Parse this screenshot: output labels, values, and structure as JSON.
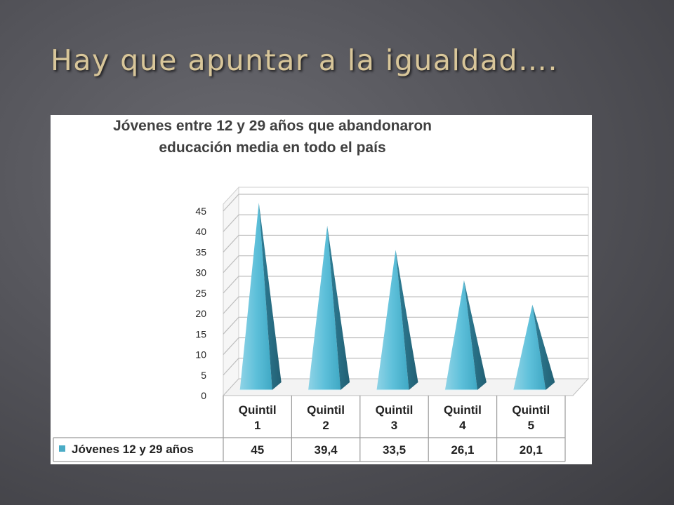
{
  "slide": {
    "title": "Hay que apuntar a la igualdad…."
  },
  "chart_data": {
    "type": "bar",
    "subtype": "3d-pyramid",
    "title_lines": [
      "Jóvenes entre 12 y 29 años que abandonaron",
      "educación media en todo el país"
    ],
    "categories": [
      [
        "Quintil",
        "1"
      ],
      [
        "Quintil",
        "2"
      ],
      [
        "Quintil",
        "3"
      ],
      [
        "Quintil",
        "4"
      ],
      [
        "Quintil",
        "5"
      ]
    ],
    "series": [
      {
        "name": "Jóvenes 12 y 29 años",
        "values": [
          45,
          39.4,
          33.5,
          26.1,
          20.1
        ],
        "value_labels": [
          "45",
          "39,4",
          "33,5",
          "26,1",
          "20,1"
        ],
        "color": "#4bacc6"
      }
    ],
    "yticks": [
      "0",
      "5",
      "10",
      "15",
      "20",
      "25",
      "30",
      "35",
      "40",
      "45"
    ],
    "ylim": [
      0,
      45
    ],
    "grid": true,
    "legend": "data-table",
    "data_table": true
  }
}
